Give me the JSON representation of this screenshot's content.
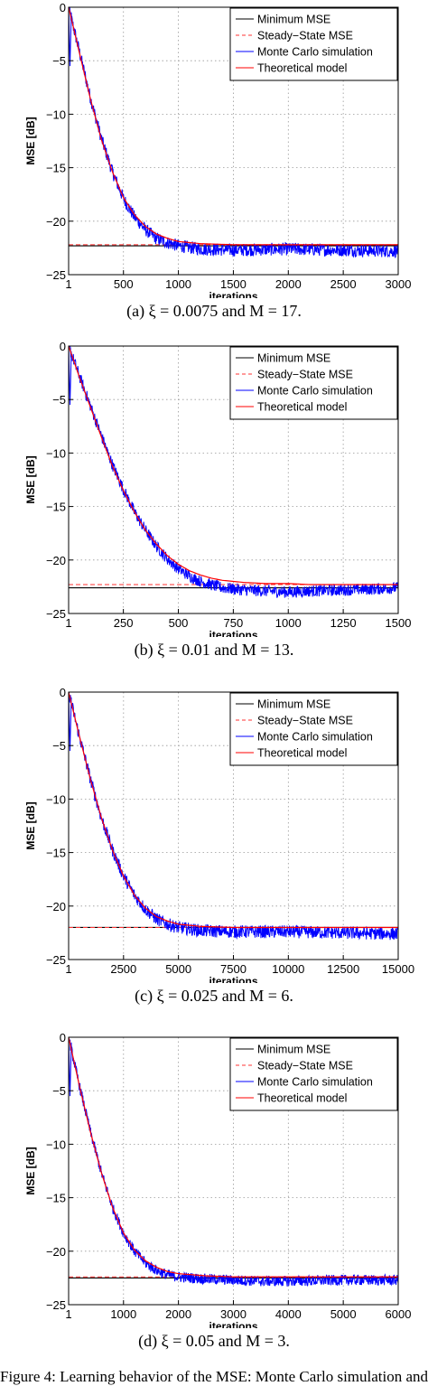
{
  "chart_data": [
    {
      "type": "line",
      "caption": "(a) ξ = 0.0075 and M = 17.",
      "xlabel": "iterations",
      "ylabel": "MSE [dB]",
      "xlim": [
        1,
        3000
      ],
      "ylim": [
        -25,
        0
      ],
      "x_ticks": [
        1,
        500,
        1000,
        1500,
        2000,
        2500,
        3000
      ],
      "x_tick_labels": [
        "1",
        "500",
        "1000",
        "1500",
        "2000",
        "2500",
        "3000"
      ],
      "y_ticks": [
        0,
        -5,
        -10,
        -15,
        -20,
        -25
      ],
      "y_tick_labels": [
        "0",
        "−5",
        "−10",
        "−15",
        "−20",
        "−25"
      ],
      "grid": true,
      "legend_position": "top-right",
      "series": [
        {
          "name": "Minimum MSE",
          "color": "#000000",
          "style": "solid",
          "constant": -22.3
        },
        {
          "name": "Steady−State MSE",
          "color": "#ff3333",
          "style": "dashed",
          "constant": -22.2
        },
        {
          "name": "Monte Carlo simulation",
          "color": "#0000ff",
          "style": "solid",
          "x": [
            1,
            100,
            200,
            300,
            400,
            500,
            600,
            700,
            800,
            900,
            1000,
            1200,
            1500,
            2000,
            2500,
            3000
          ],
          "values": [
            0,
            -4.2,
            -8.5,
            -12.3,
            -15.4,
            -17.9,
            -19.6,
            -20.8,
            -21.6,
            -22.0,
            -22.3,
            -22.6,
            -22.7,
            -22.6,
            -22.7,
            -22.8
          ],
          "noise": 0.6
        },
        {
          "name": "Theoretical model",
          "color": "#ff0000",
          "style": "solid",
          "x": [
            1,
            100,
            200,
            300,
            400,
            500,
            600,
            700,
            800,
            900,
            1000,
            1200,
            1500,
            2000,
            2500,
            3000
          ],
          "values": [
            0,
            -4.3,
            -8.6,
            -12.4,
            -15.4,
            -17.8,
            -19.4,
            -20.5,
            -21.2,
            -21.6,
            -21.9,
            -22.1,
            -22.2,
            -22.2,
            -22.2,
            -22.2
          ]
        }
      ]
    },
    {
      "type": "line",
      "caption": "(b) ξ = 0.01 and M = 13.",
      "xlabel": "iterations",
      "ylabel": "MSE [dB]",
      "xlim": [
        1,
        1500
      ],
      "ylim": [
        -25,
        0
      ],
      "x_ticks": [
        1,
        250,
        500,
        750,
        1000,
        1250,
        1500
      ],
      "x_tick_labels": [
        "1",
        "250",
        "500",
        "750",
        "1000",
        "1250",
        "1500"
      ],
      "y_ticks": [
        0,
        -5,
        -10,
        -15,
        -20,
        -25
      ],
      "y_tick_labels": [
        "0",
        "−5",
        "−10",
        "−15",
        "−20",
        "−25"
      ],
      "grid": true,
      "legend_position": "top-right",
      "series": [
        {
          "name": "Minimum MSE",
          "color": "#000000",
          "style": "solid",
          "constant": -22.6
        },
        {
          "name": "Steady−State MSE",
          "color": "#ff3333",
          "style": "dashed",
          "constant": -22.3
        },
        {
          "name": "Monte Carlo simulation",
          "color": "#0000ff",
          "style": "solid",
          "x": [
            1,
            50,
            100,
            150,
            200,
            250,
            300,
            350,
            400,
            450,
            500,
            550,
            600,
            650,
            700,
            800,
            900,
            1000,
            1100,
            1250,
            1400,
            1500
          ],
          "values": [
            0,
            -2.8,
            -5.6,
            -8.4,
            -11.1,
            -13.4,
            -15.5,
            -17.2,
            -18.7,
            -19.9,
            -20.8,
            -21.5,
            -22.0,
            -22.3,
            -22.6,
            -22.8,
            -22.9,
            -23.0,
            -22.9,
            -22.8,
            -22.7,
            -22.6
          ],
          "noise": 0.55
        },
        {
          "name": "Theoretical model",
          "color": "#ff0000",
          "style": "solid",
          "x": [
            1,
            50,
            100,
            150,
            200,
            250,
            300,
            350,
            400,
            450,
            500,
            550,
            600,
            650,
            700,
            800,
            900,
            1000,
            1100,
            1250,
            1400,
            1500
          ],
          "values": [
            0,
            -2.9,
            -5.7,
            -8.5,
            -11.2,
            -13.5,
            -15.5,
            -17.2,
            -18.5,
            -19.6,
            -20.4,
            -21.0,
            -21.4,
            -21.7,
            -21.9,
            -22.1,
            -22.2,
            -22.2,
            -22.3,
            -22.3,
            -22.3,
            -22.3
          ]
        }
      ]
    },
    {
      "type": "line",
      "caption": "(c) ξ = 0.025 and M = 6.",
      "xlabel": "iterations",
      "ylabel": "MSE [dB]",
      "xlim": [
        1,
        15000
      ],
      "ylim": [
        -25,
        0
      ],
      "x_ticks": [
        1,
        2500,
        5000,
        7500,
        10000,
        12500,
        15000
      ],
      "x_tick_labels": [
        "1",
        "2500",
        "5000",
        "7500",
        "10000",
        "12500",
        "15000"
      ],
      "y_ticks": [
        0,
        -5,
        -10,
        -15,
        -20,
        -25
      ],
      "y_tick_labels": [
        "0",
        "−5",
        "−10",
        "−15",
        "−20",
        "−25"
      ],
      "grid": true,
      "legend_position": "top-right",
      "series": [
        {
          "name": "Minimum MSE",
          "color": "#000000",
          "style": "solid",
          "constant": -22.0
        },
        {
          "name": "Steady−State MSE",
          "color": "#ff3333",
          "style": "dashed",
          "constant": -22.0
        },
        {
          "name": "Monte Carlo simulation",
          "color": "#0000ff",
          "style": "solid",
          "x": [
            1,
            500,
            1000,
            1500,
            2000,
            2500,
            3000,
            3500,
            4000,
            4500,
            5000,
            6000,
            7500,
            10000,
            12500,
            15000
          ],
          "values": [
            0,
            -4.2,
            -8.2,
            -11.8,
            -14.8,
            -17.2,
            -19.0,
            -20.3,
            -21.2,
            -21.7,
            -22.0,
            -22.3,
            -22.4,
            -22.4,
            -22.5,
            -22.6
          ],
          "noise": 0.6
        },
        {
          "name": "Theoretical model",
          "color": "#ff0000",
          "style": "solid",
          "x": [
            1,
            500,
            1000,
            1500,
            2000,
            2500,
            3000,
            3500,
            4000,
            4500,
            5000,
            6000,
            7500,
            10000,
            12500,
            15000
          ],
          "values": [
            0,
            -4.2,
            -8.2,
            -11.8,
            -14.8,
            -17.2,
            -19.0,
            -20.2,
            -21.0,
            -21.4,
            -21.7,
            -21.9,
            -22.0,
            -22.0,
            -22.0,
            -22.0
          ]
        }
      ]
    },
    {
      "type": "line",
      "caption": "(d) ξ = 0.05 and M = 3.",
      "xlabel": "iterations",
      "ylabel": "MSE [dB]",
      "xlim": [
        1,
        6000
      ],
      "ylim": [
        -25,
        0
      ],
      "x_ticks": [
        1,
        1000,
        2000,
        3000,
        4000,
        5000,
        6000
      ],
      "x_tick_labels": [
        "1",
        "1000",
        "2000",
        "3000",
        "4000",
        "5000",
        "6000"
      ],
      "y_ticks": [
        0,
        -5,
        -10,
        -15,
        -20,
        -25
      ],
      "y_tick_labels": [
        "0",
        "−5",
        "−10",
        "−15",
        "−20",
        "−25"
      ],
      "grid": true,
      "legend_position": "top-right",
      "series": [
        {
          "name": "Minimum MSE",
          "color": "#000000",
          "style": "solid",
          "constant": -22.5
        },
        {
          "name": "Steady−State MSE",
          "color": "#ff3333",
          "style": "dashed",
          "constant": -22.4
        },
        {
          "name": "Monte Carlo simulation",
          "color": "#0000ff",
          "style": "solid",
          "x": [
            1,
            200,
            400,
            600,
            800,
            1000,
            1200,
            1400,
            1600,
            1800,
            2000,
            2500,
            3000,
            3500,
            4000,
            5000,
            6000
          ],
          "values": [
            0,
            -4.6,
            -8.9,
            -12.7,
            -15.9,
            -18.3,
            -20.0,
            -21.1,
            -21.8,
            -22.2,
            -22.4,
            -22.6,
            -22.7,
            -22.8,
            -22.8,
            -22.7,
            -22.7
          ],
          "noise": 0.5
        },
        {
          "name": "Theoretical model",
          "color": "#ff0000",
          "style": "solid",
          "x": [
            1,
            200,
            400,
            600,
            800,
            1000,
            1200,
            1400,
            1600,
            1800,
            2000,
            2500,
            3000,
            3500,
            4000,
            5000,
            6000
          ],
          "values": [
            0,
            -4.6,
            -8.9,
            -12.7,
            -15.9,
            -18.3,
            -19.9,
            -20.9,
            -21.5,
            -21.9,
            -22.1,
            -22.3,
            -22.4,
            -22.4,
            -22.4,
            -22.4,
            -22.4
          ]
        }
      ]
    }
  ],
  "footer_text": "Figure 4: Learning behavior of the MSE: Monte Carlo simulation and"
}
